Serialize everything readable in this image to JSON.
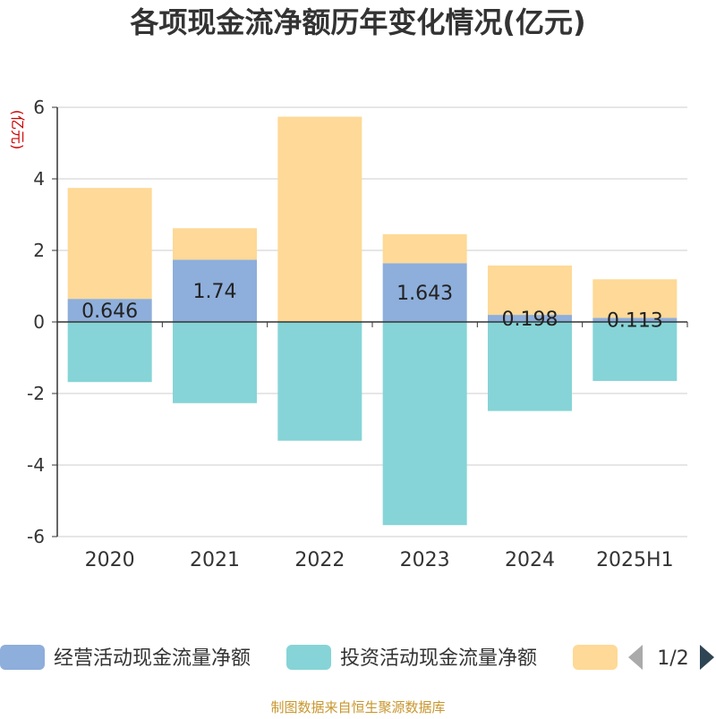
{
  "title": "各项现金流净额历年变化情况(亿元)",
  "source": "制图数据来自恒生聚源数据库",
  "colors": {
    "operating": "#8eaedb",
    "investing": "#86d4d7",
    "financing": "#fed997",
    "axis": "#333333",
    "grid": "#cccccc",
    "ylabel": "#cc0000",
    "source": "#c8962d"
  },
  "legend": {
    "items": [
      {
        "label": "经营活动现金流量净额",
        "color": "#8eaedb"
      },
      {
        "label": "投资活动现金流量净额",
        "color": "#86d4d7"
      },
      {
        "label": "",
        "color": "#fed997"
      }
    ],
    "page": "1/2",
    "prev_icon": "triangle-left-icon",
    "next_icon": "triangle-right-icon"
  },
  "chart_data": {
    "type": "bar",
    "stacked": true,
    "categories": [
      "2020",
      "2021",
      "2022",
      "2023",
      "2024",
      "2025H1"
    ],
    "ylabel": "(亿元)",
    "ylim": [
      -6,
      6
    ],
    "yticks": [
      6,
      4,
      2,
      0,
      -2,
      -4,
      -6
    ],
    "grid": true,
    "legend_position": "bottom",
    "series": [
      {
        "name": "经营活动现金流量净额",
        "values": [
          0.646,
          1.74,
          0.018,
          1.643,
          0.198,
          0.113
        ],
        "labels": [
          "0.646",
          "1.74",
          "",
          "1.643",
          "0.198",
          "0.113"
        ]
      },
      {
        "name": "投资活动现金流量净额",
        "values": [
          -1.68,
          -2.27,
          -3.32,
          -5.68,
          -2.49,
          -1.65
        ]
      },
      {
        "name": "",
        "values": [
          3.1,
          0.88,
          5.72,
          0.81,
          1.38,
          1.08
        ]
      }
    ]
  }
}
